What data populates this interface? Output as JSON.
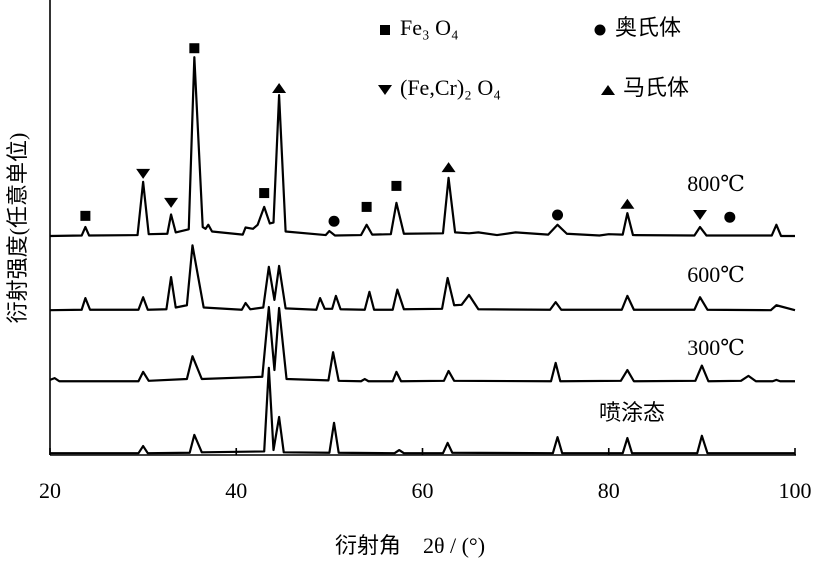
{
  "chart_data": {
    "type": "line",
    "x_label": "衍射角　2θ / (°)",
    "y_label": "衍射强度(任意单位)",
    "xlim": [
      20,
      100
    ],
    "xticks": [
      20,
      40,
      60,
      80,
      100
    ],
    "ylim": [
      0,
      100
    ],
    "series": [
      {
        "name": "800℃",
        "color": "#000000",
        "x": [
          20,
          23.4,
          23.8,
          24.2,
          29.4,
          30,
          30.6,
          32.6,
          33,
          33.5,
          34.9,
          35.5,
          36.4,
          36.7,
          37,
          37.4,
          40.7,
          41,
          41.8,
          42.3,
          43,
          43.6,
          44,
          44.6,
          45.3,
          49.6,
          50,
          50.6,
          53.4,
          54,
          54.6,
          56.6,
          57.2,
          58,
          62.2,
          62.8,
          63.5,
          65,
          66,
          68,
          70,
          73.5,
          74.5,
          75.5,
          79,
          80,
          81.5,
          82,
          82.6,
          89.2,
          89.8,
          90.5,
          97.5,
          98,
          98.5,
          100
        ],
        "values": [
          49,
          49.1,
          51,
          49.1,
          49.2,
          61.1,
          49.4,
          49.5,
          53.8,
          49.8,
          50.5,
          89,
          51,
          50.6,
          51.5,
          50,
          49.3,
          50.9,
          50.6,
          51.5,
          55.5,
          51.8,
          52,
          80.5,
          50,
          49.2,
          50.1,
          49.1,
          49.2,
          51.5,
          49.3,
          49.4,
          56.4,
          49.5,
          49.6,
          62,
          49.8,
          49.6,
          49.8,
          49.2,
          49.8,
          49.3,
          51.5,
          49.5,
          49.1,
          49.4,
          49.3,
          54.1,
          49.2,
          49.1,
          51,
          49.1,
          49.1,
          51.5,
          49,
          49
        ]
      },
      {
        "name": "600℃",
        "color": "#000000",
        "x": [
          20,
          23.4,
          23.8,
          24.3,
          29.5,
          30,
          30.5,
          32.5,
          33,
          33.5,
          34.7,
          35.3,
          36.5,
          40.6,
          41,
          41.5,
          42.9,
          43.5,
          44.1,
          44.6,
          45.3,
          48.6,
          49,
          49.5,
          50.3,
          50.7,
          51.2,
          53.8,
          54.3,
          54.8,
          56.8,
          57.3,
          58,
          62.1,
          62.7,
          63.4,
          64.2,
          65,
          66,
          73.7,
          74.3,
          74.9,
          81.4,
          82,
          82.7,
          89.2,
          89.8,
          90.6,
          97.4,
          98,
          100
        ],
        "values": [
          32.4,
          32.5,
          35.1,
          32.5,
          32.5,
          35.3,
          32.5,
          32.6,
          39.8,
          33,
          33.5,
          46.9,
          33,
          32.5,
          34,
          32.6,
          33,
          42.1,
          34.7,
          42.3,
          32.8,
          32.5,
          35.1,
          32.7,
          32.7,
          35.6,
          32.6,
          32.5,
          36.5,
          32.5,
          32.5,
          37,
          32.6,
          32.7,
          39.6,
          33.5,
          33.6,
          35.8,
          32.6,
          32.5,
          34.2,
          32.5,
          32.5,
          35.6,
          32.5,
          32.5,
          35.3,
          32.5,
          32.4,
          33.5,
          32.4
        ]
      },
      {
        "name": "300℃",
        "color": "#000000",
        "x": [
          20,
          20.5,
          21,
          29.5,
          30,
          30.6,
          34.7,
          35.3,
          36.3,
          42.8,
          43.5,
          44.1,
          44.6,
          45.4,
          49.9,
          50.4,
          51,
          53.4,
          53.8,
          54.2,
          56.8,
          57.2,
          57.7,
          62.3,
          62.8,
          63.4,
          73.8,
          74.3,
          74.8,
          81.3,
          82,
          82.7,
          89.3,
          90,
          90.7,
          94.2,
          95,
          95.8,
          97.6,
          98,
          98.4,
          100
        ],
        "values": [
          16.8,
          17.2,
          16.5,
          16.5,
          18.6,
          16.6,
          17,
          22.1,
          17,
          17.5,
          33.1,
          19,
          32.9,
          17,
          16.7,
          23,
          16.6,
          16.5,
          17,
          16.5,
          16.5,
          18.6,
          16.5,
          16.6,
          18.8,
          16.6,
          16.5,
          20.6,
          16.5,
          16.6,
          19,
          16.5,
          16.6,
          20,
          16.5,
          16.6,
          17.7,
          16.5,
          16.5,
          16.8,
          16.5,
          16.5
        ]
      },
      {
        "name": "喷涂态",
        "color": "#000000",
        "x": [
          20,
          29.5,
          30,
          30.5,
          35,
          35.5,
          36.3,
          43,
          43.5,
          44,
          44.6,
          45.1,
          50,
          50.5,
          51,
          57,
          57.5,
          58,
          62.2,
          62.7,
          63.2,
          74,
          74.5,
          75,
          81.5,
          82,
          82.5,
          89.5,
          90,
          90.6,
          100
        ],
        "values": [
          0.4,
          0.4,
          2,
          0.4,
          0.5,
          4.5,
          0.6,
          0.8,
          19.5,
          1.1,
          8.5,
          0.6,
          0.5,
          7.2,
          0.5,
          0.4,
          1.1,
          0.4,
          0.4,
          2.7,
          0.5,
          0.4,
          4,
          0.4,
          0.4,
          3.8,
          0.4,
          0.4,
          4.3,
          0.4,
          0.4
        ]
      }
    ],
    "phases": [
      {
        "name": "Fe₃ O₄",
        "symbol": "square",
        "x": [
          23.8,
          35.5,
          43,
          54,
          57.2
        ],
        "values": [
          53.5,
          91,
          58.6,
          55.5,
          60.2
        ]
      },
      {
        "name": "奥氏体",
        "symbol": "circle",
        "x": [
          50.5,
          74.5,
          93
        ],
        "values": [
          52.3,
          53.7,
          53.2
        ]
      },
      {
        "name": "(Fe,Cr)₂ O₄",
        "symbol": "triangle-down",
        "x": [
          30,
          33,
          89.8
        ],
        "values": [
          62.9,
          56.4,
          53.7
        ]
      },
      {
        "name": "马氏体",
        "symbol": "triangle-up",
        "x": [
          44.6,
          62.8,
          82
        ],
        "values": [
          82.1,
          64.4,
          56.2
        ]
      }
    ]
  }
}
